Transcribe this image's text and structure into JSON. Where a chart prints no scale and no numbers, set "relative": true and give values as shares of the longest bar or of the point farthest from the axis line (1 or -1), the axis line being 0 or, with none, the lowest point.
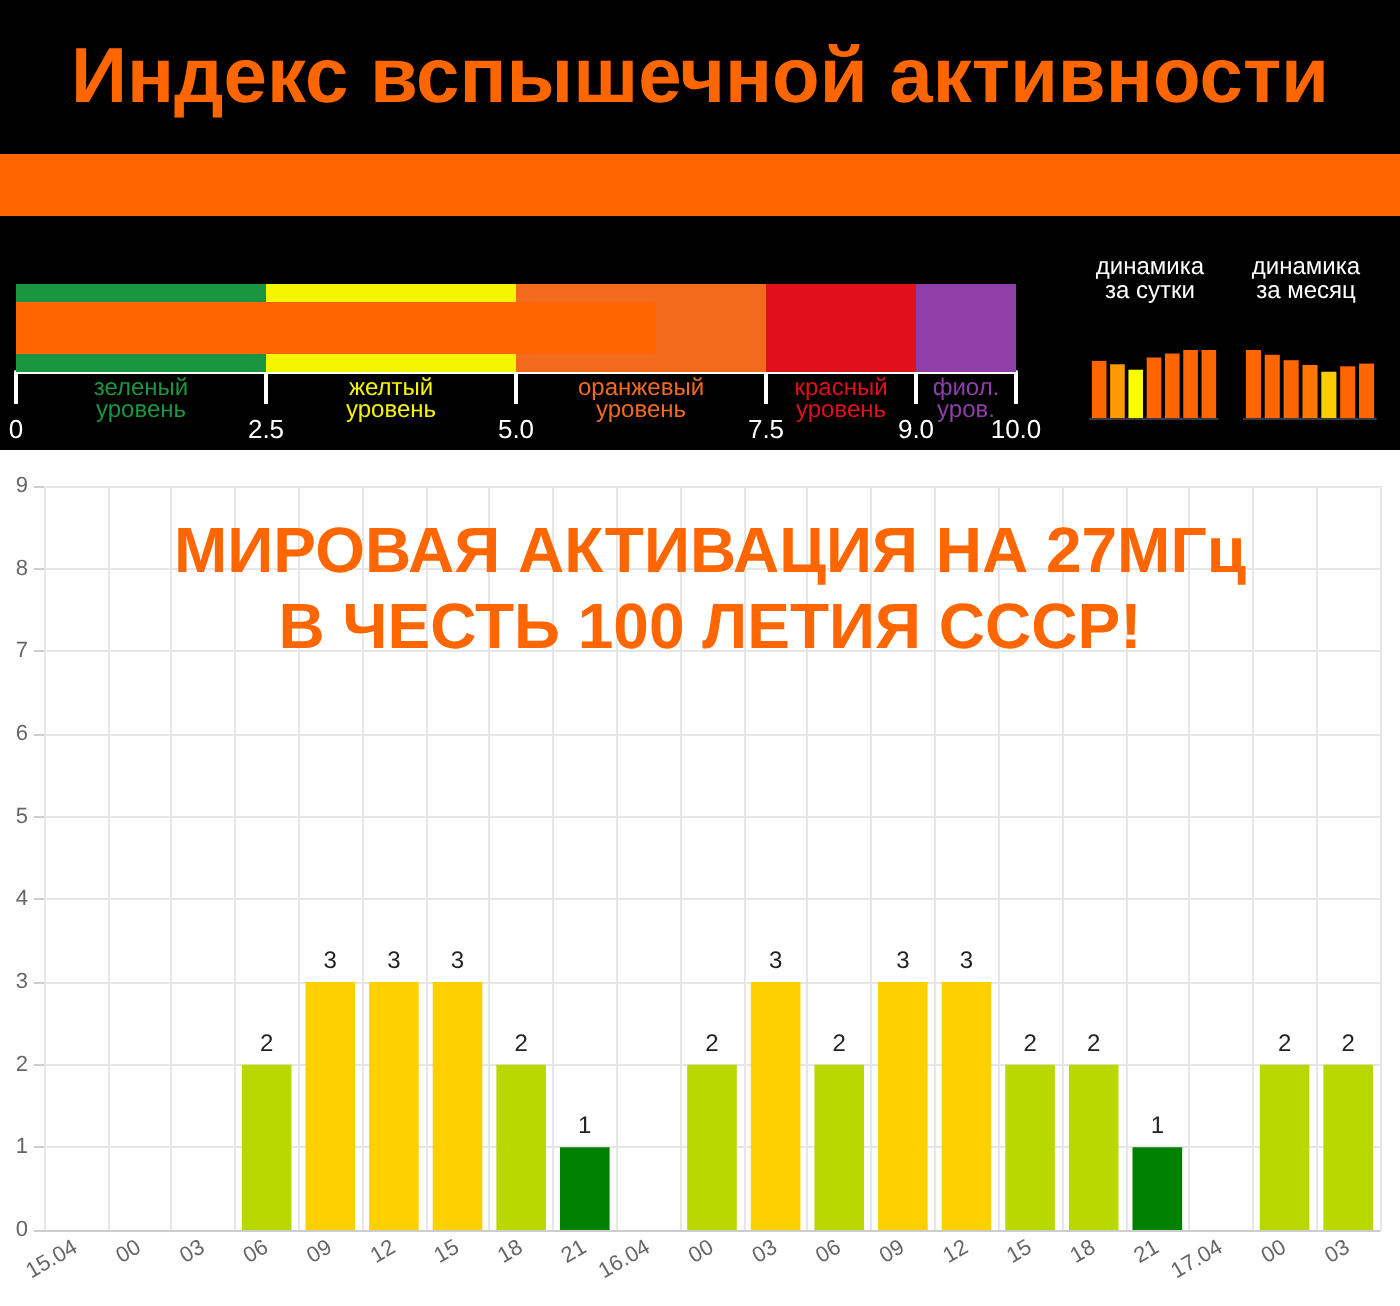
{
  "chart_data": [
    {
      "type": "other",
      "title": "Индекс вспышечной активности"
    },
    {
      "type": "bar",
      "orientation": "horizontal",
      "categories": [
        null
      ],
      "values": [
        6.4
      ],
      "color": "#ff6600",
      "xlim": [
        0,
        10
      ],
      "xticks": [
        0,
        2.5,
        {
          "value": 5,
          "label": "5.0"
        },
        7.5,
        {
          "value": 9,
          "label": "9.0"
        },
        {
          "value": 10,
          "label": "10.0"
        }
      ],
      "tick_labels": "x",
      "bands": [
        {
          "axis": "x",
          "from": 0,
          "to": 2.5,
          "label": "зеленый\nуровень",
          "color": "#1a9641"
        },
        {
          "axis": "x",
          "from": 2.5,
          "to": 5,
          "label": "желтый\nуровень",
          "color": "#f5f500"
        },
        {
          "axis": "x",
          "from": 5,
          "to": 7.5,
          "label": "оранжевый\nуровень",
          "color": "#f26b1d"
        },
        {
          "axis": "x",
          "from": 7.5,
          "to": 9,
          "label": "красный\nуровень",
          "color": "#e0101a"
        },
        {
          "axis": "x",
          "from": 9,
          "to": 10,
          "label": "фиол.\nуров.",
          "color": "#8e3fa8"
        }
      ]
    },
    {
      "type": "bar",
      "relative": true,
      "title": "динамика\nза сутки",
      "categories": [
        null,
        null,
        null,
        null,
        null,
        null,
        null
      ],
      "values": [
        0.84,
        0.79,
        0.71,
        0.89,
        0.95,
        1,
        1
      ],
      "colors": [
        "#ff6600",
        "#ff9900",
        "#ffff00",
        "#ff6600",
        "#ff6600",
        "#ff6600",
        "#ff6600"
      ]
    },
    {
      "type": "bar",
      "relative": true,
      "title": "динамика\nза месяц",
      "categories": [
        null,
        null,
        null,
        null,
        null,
        null,
        null
      ],
      "values": [
        1,
        0.93,
        0.85,
        0.78,
        0.68,
        0.76,
        0.8
      ],
      "colors": [
        "#ff6600",
        "#ff6600",
        "#ff6600",
        "#ff7700",
        "#ffcc00",
        "#ff6600",
        "#ff6600"
      ]
    },
    {
      "type": "bar",
      "title": "МИРОВАЯ АКТИВАЦИЯ НА 27МГц\nВ ЧЕСТЬ 100 ЛЕТИЯ СССР!",
      "categories": [
        "15.04",
        "00",
        "03",
        "06",
        "09",
        "12",
        "15",
        "18",
        "21",
        "16.04",
        "00",
        "03",
        "06",
        "09",
        "12",
        "15",
        "18",
        "21",
        "17.04",
        "00",
        "03"
      ],
      "values": [
        0,
        0,
        0,
        2,
        3,
        3,
        3,
        2,
        1,
        0,
        2,
        3,
        2,
        3,
        3,
        2,
        2,
        1,
        0,
        2,
        2
      ],
      "colors": [
        "#008000",
        "#008000",
        "#008000",
        "#b8d800",
        "#ffd000",
        "#ffd000",
        "#ffd000",
        "#b8d800",
        "#008000",
        "#008000",
        "#b8d800",
        "#ffd000",
        "#b8d800",
        "#ffd000",
        "#ffd000",
        "#b8d800",
        "#b8d800",
        "#008000",
        "#008000",
        "#b8d800",
        "#b8d800"
      ],
      "value_labels": [
        null,
        null,
        null,
        "2",
        "3",
        "3",
        "3",
        "2",
        "1",
        null,
        "2",
        "3",
        "2",
        "3",
        "3",
        "2",
        "2",
        "1",
        null,
        "2",
        "2"
      ],
      "ylim": [
        0,
        9
      ],
      "yticks": [
        0,
        1,
        2,
        3,
        4,
        5,
        6,
        7,
        8,
        9
      ],
      "grid": true
    }
  ]
}
